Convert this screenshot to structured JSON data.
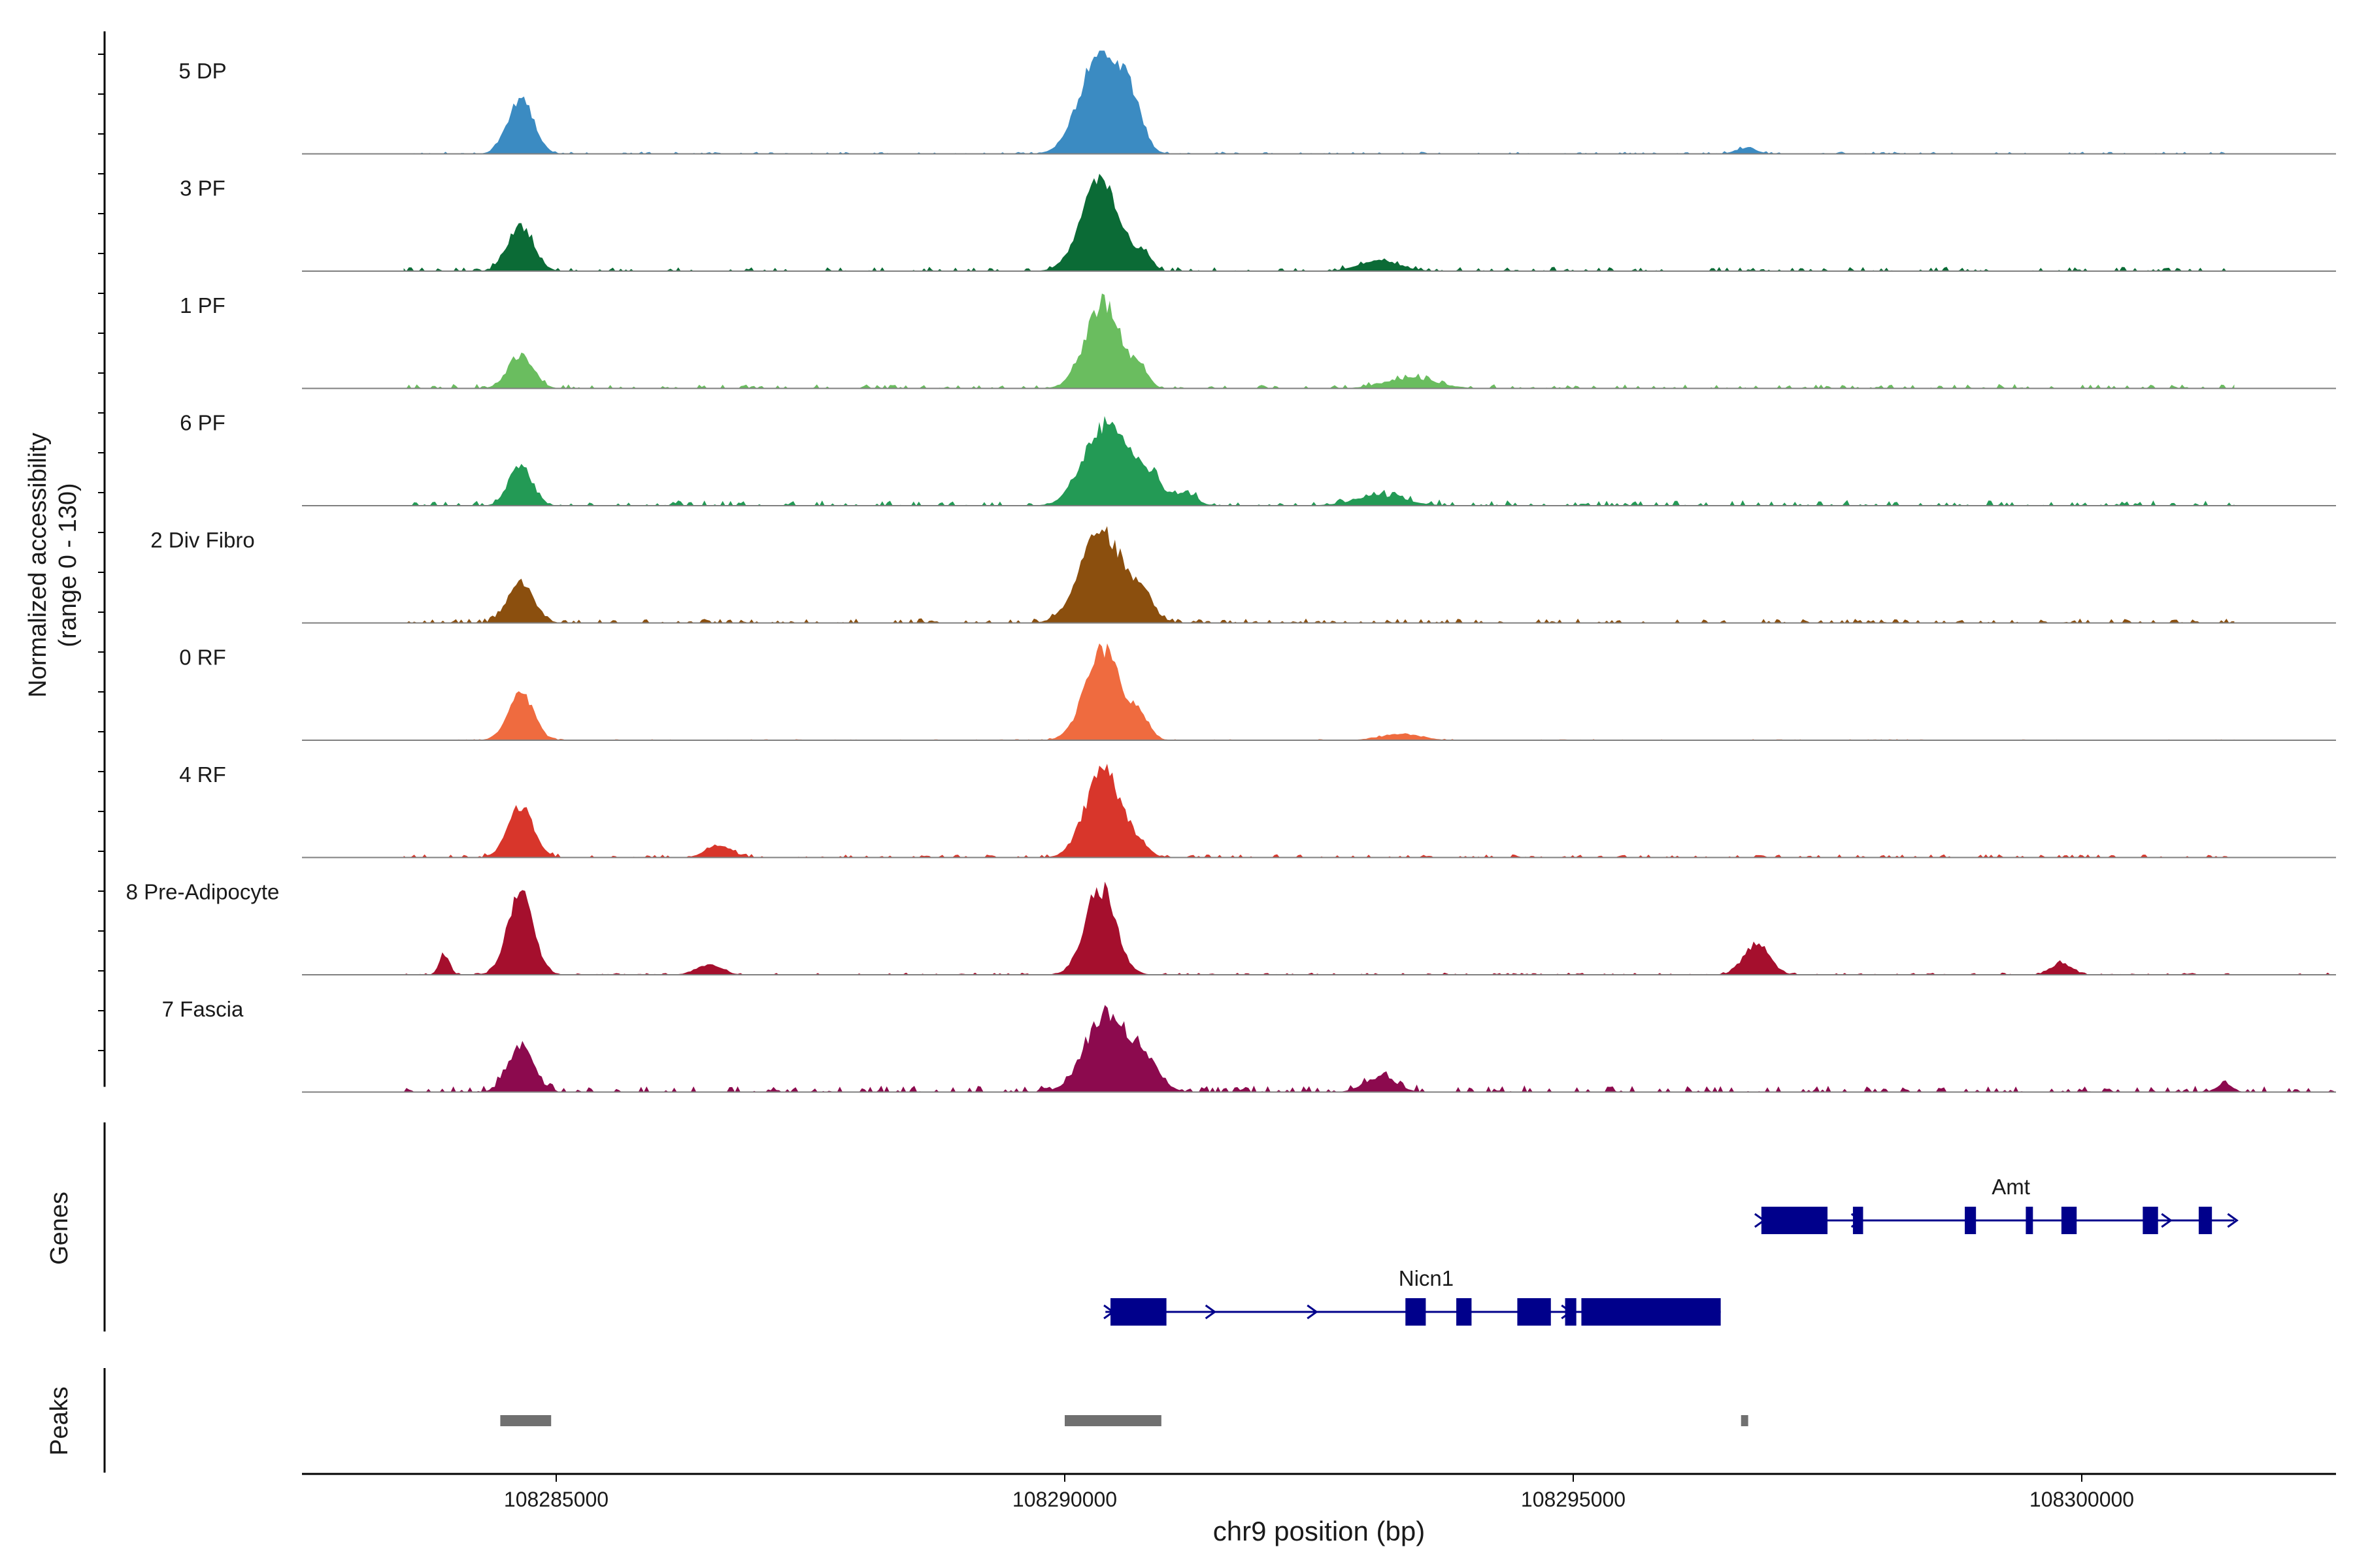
{
  "chart_data": {
    "type": "area",
    "title": "",
    "ylabel_line1": "Normalized accessibility",
    "ylabel_line2": "(range 0 - 130)",
    "yrange": [
      0,
      130
    ],
    "genes_label": "Genes",
    "peaks_label": "Peaks",
    "xlabel": "chr9 position (bp)",
    "xlim": [
      108282500,
      108302500
    ],
    "xticks": [
      108285000,
      108290000,
      108295000,
      108300000
    ],
    "xtick_labels": [
      "108285000",
      "108290000",
      "108295000",
      "108300000"
    ],
    "tracks": [
      {
        "name": "5 DP",
        "color": "#3b8bc2",
        "baseline_end": 108301500,
        "peaks": [
          [
            108284650,
            0.5,
            0.55
          ],
          [
            108290350,
            0.78,
            1.0
          ],
          [
            108290650,
            0.45,
            0.4
          ],
          [
            108296700,
            0.4,
            0.06
          ]
        ],
        "noise": 0.02,
        "seed": 5
      },
      {
        "name": "3 PF",
        "color": "#0b6b36",
        "baseline_end": 108301500,
        "peaks": [
          [
            108284650,
            0.5,
            0.45
          ],
          [
            108290350,
            0.75,
            0.85
          ],
          [
            108290780,
            0.3,
            0.16
          ],
          [
            108293100,
            0.8,
            0.1
          ]
        ],
        "noise": 0.04,
        "seed": 3
      },
      {
        "name": "1 PF",
        "color": "#6abd5f",
        "baseline_end": 108301500,
        "peaks": [
          [
            108284650,
            0.5,
            0.32
          ],
          [
            108290380,
            0.7,
            0.82
          ],
          [
            108290750,
            0.3,
            0.16
          ],
          [
            108293400,
            1.0,
            0.1
          ]
        ],
        "noise": 0.04,
        "seed": 1
      },
      {
        "name": "6 PF",
        "color": "#239a55",
        "baseline_end": 108301500,
        "peaks": [
          [
            108284650,
            0.45,
            0.4
          ],
          [
            108290380,
            0.8,
            0.78
          ],
          [
            108290800,
            0.6,
            0.3
          ],
          [
            108293100,
            1.0,
            0.1
          ],
          [
            108291200,
            0.4,
            0.12
          ]
        ],
        "noise": 0.05,
        "seed": 6
      },
      {
        "name": "2 Div Fibro",
        "color": "#8b4f0e",
        "baseline_end": 108301500,
        "peaks": [
          [
            108284650,
            0.5,
            0.4
          ],
          [
            108290350,
            0.8,
            0.88
          ],
          [
            108290750,
            0.5,
            0.25
          ]
        ],
        "noise": 0.04,
        "seed": 2
      },
      {
        "name": "0 RF",
        "color": "#ef6b3f",
        "baseline_end": 108301500,
        "peaks": [
          [
            108284650,
            0.5,
            0.45
          ],
          [
            108290380,
            0.7,
            0.9
          ],
          [
            108290750,
            0.35,
            0.2
          ],
          [
            108293300,
            0.8,
            0.06
          ]
        ],
        "noise": 0.01,
        "seed": 0
      },
      {
        "name": "4 RF",
        "color": "#d8362b",
        "baseline_end": 108301500,
        "peaks": [
          [
            108284650,
            0.5,
            0.5
          ],
          [
            108290380,
            0.7,
            0.85
          ],
          [
            108286600,
            0.5,
            0.12
          ],
          [
            108290750,
            0.35,
            0.1
          ]
        ],
        "noise": 0.03,
        "seed": 4
      },
      {
        "name": "8 Pre-Adipocyte",
        "color": "#a50f2d",
        "baseline_end": 108302500,
        "peaks": [
          [
            108284650,
            0.5,
            0.8
          ],
          [
            108290350,
            0.6,
            0.83
          ],
          [
            108296800,
            0.5,
            0.3
          ],
          [
            108299800,
            0.4,
            0.12
          ],
          [
            108283900,
            0.2,
            0.2
          ],
          [
            108286500,
            0.5,
            0.1
          ]
        ],
        "noise": 0.02,
        "seed": 8
      },
      {
        "name": "7 Fascia",
        "color": "#8c0a4e",
        "baseline_end": 108302500,
        "peaks": [
          [
            108284650,
            0.5,
            0.45
          ],
          [
            108290400,
            0.8,
            0.75
          ],
          [
            108290780,
            0.6,
            0.28
          ],
          [
            108293100,
            0.6,
            0.15
          ],
          [
            108301400,
            0.3,
            0.08
          ]
        ],
        "noise": 0.06,
        "seed": 7
      }
    ],
    "genes": [
      {
        "name": "Amt",
        "row": 0,
        "start": 108296850,
        "end": 108301500,
        "exons": [
          [
            108296850,
            108297500
          ],
          [
            108297750,
            108297850
          ],
          [
            108298850,
            108298960
          ],
          [
            108299450,
            108299520
          ],
          [
            108299800,
            108299950
          ],
          [
            108300600,
            108300750
          ],
          [
            108301150,
            108301280
          ]
        ],
        "arrow_positions": [
          108296850,
          108297800,
          108300850,
          108301500
        ]
      },
      {
        "name": "Nicn1",
        "row": 1,
        "start": 108290400,
        "end": 108296450,
        "exons": [
          [
            108290450,
            108291000
          ],
          [
            108293350,
            108293550
          ],
          [
            108293850,
            108294000
          ],
          [
            108294450,
            108294780
          ],
          [
            108294920,
            108295030
          ],
          [
            108295080,
            108296450
          ]
        ],
        "arrow_positions": [
          108290450,
          108291450,
          108292450,
          108294950
        ]
      }
    ],
    "peak_regions": [
      [
        108284450,
        108284950
      ],
      [
        108290000,
        108290950
      ],
      [
        108296650,
        108296720
      ]
    ]
  }
}
